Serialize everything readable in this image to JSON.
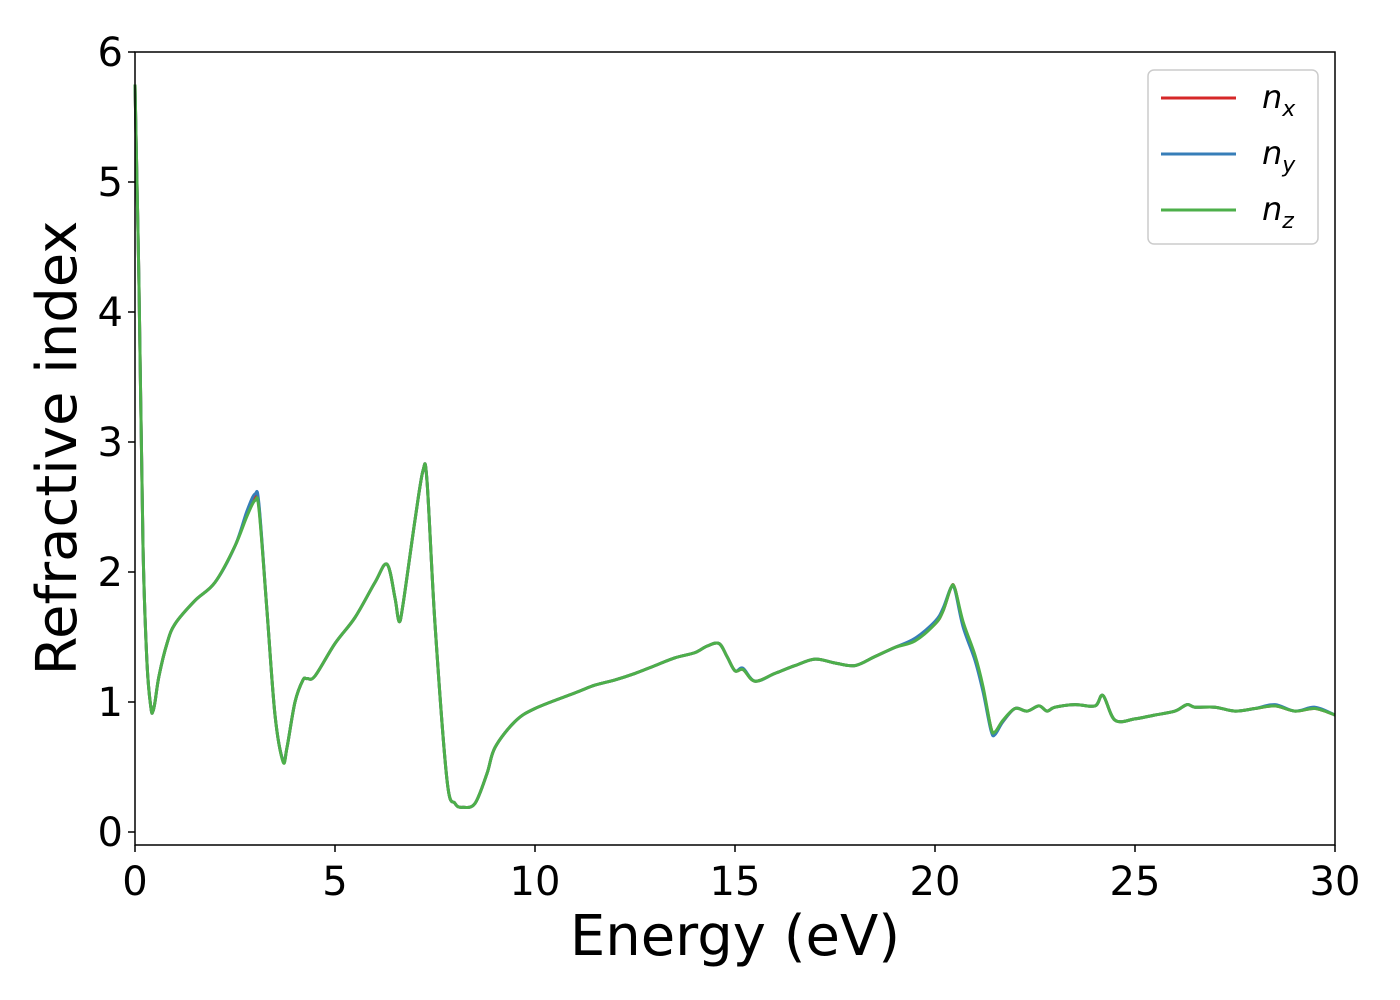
{
  "chart_data": {
    "type": "line",
    "xlabel": "Energy (eV)",
    "ylabel": "Refractive index",
    "xlim": [
      0,
      30
    ],
    "ylim": [
      -0.1,
      6
    ],
    "xticks": [
      0,
      5,
      10,
      15,
      20,
      25,
      30
    ],
    "yticks": [
      0,
      1,
      2,
      3,
      4,
      5,
      6
    ],
    "x_tick_labels": [
      "0",
      "5",
      "10",
      "15",
      "20",
      "25",
      "30"
    ],
    "y_tick_labels": [
      "0",
      "1",
      "2",
      "3",
      "4",
      "5",
      "6"
    ],
    "grid": false,
    "legend_position": "top-right",
    "series": [
      {
        "name": "n_x",
        "label_main": "n",
        "label_sub": "x",
        "color": "#d62728",
        "x": [
          0,
          0.1,
          0.2,
          0.3,
          0.4,
          0.45,
          0.5,
          0.6,
          0.8,
          1.0,
          1.5,
          2.0,
          2.5,
          2.8,
          3.0,
          3.1,
          3.3,
          3.5,
          3.7,
          3.8,
          4.0,
          4.2,
          4.3,
          4.5,
          5.0,
          5.5,
          6.0,
          6.3,
          6.5,
          6.6,
          6.7,
          7.0,
          7.2,
          7.3,
          7.5,
          7.8,
          8.0,
          8.2,
          8.5,
          8.8,
          9.0,
          9.5,
          10,
          11,
          11.5,
          12,
          12.5,
          13,
          13.5,
          14,
          14.3,
          14.6,
          14.8,
          15,
          15.2,
          15.5,
          16,
          16.5,
          17,
          17.5,
          18,
          18.5,
          19,
          19.5,
          20,
          20.2,
          20.4,
          20.5,
          20.7,
          21,
          21.2,
          21.4,
          21.5,
          21.7,
          22,
          22.3,
          22.6,
          22.8,
          23,
          23.5,
          24,
          24.2,
          24.5,
          25,
          25.5,
          26,
          26.3,
          26.5,
          27,
          27.5,
          28,
          28.5,
          29,
          29.5,
          30
        ],
        "values": [
          5.75,
          4.2,
          2.2,
          1.3,
          0.95,
          0.93,
          1.0,
          1.2,
          1.45,
          1.6,
          1.78,
          1.92,
          2.2,
          2.45,
          2.58,
          2.5,
          1.7,
          0.9,
          0.55,
          0.65,
          1.0,
          1.17,
          1.18,
          1.2,
          1.45,
          1.65,
          1.92,
          2.06,
          1.8,
          1.62,
          1.75,
          2.4,
          2.78,
          2.7,
          1.6,
          0.4,
          0.22,
          0.19,
          0.22,
          0.45,
          0.65,
          0.85,
          0.95,
          1.07,
          1.13,
          1.17,
          1.22,
          1.28,
          1.34,
          1.38,
          1.43,
          1.45,
          1.35,
          1.24,
          1.25,
          1.16,
          1.22,
          1.28,
          1.33,
          1.3,
          1.28,
          1.35,
          1.42,
          1.48,
          1.6,
          1.7,
          1.88,
          1.87,
          1.6,
          1.35,
          1.1,
          0.8,
          0.76,
          0.85,
          0.95,
          0.93,
          0.97,
          0.93,
          0.96,
          0.98,
          0.97,
          1.05,
          0.86,
          0.87,
          0.9,
          0.93,
          0.98,
          0.96,
          0.96,
          0.93,
          0.95,
          0.97,
          0.93,
          0.95,
          0.9
        ]
      },
      {
        "name": "n_y",
        "label_main": "n",
        "label_sub": "y",
        "color": "#377eb8",
        "x": [
          0,
          0.1,
          0.2,
          0.3,
          0.4,
          0.45,
          0.5,
          0.6,
          0.8,
          1.0,
          1.5,
          2.0,
          2.5,
          2.8,
          3.0,
          3.1,
          3.3,
          3.5,
          3.7,
          3.8,
          4.0,
          4.2,
          4.3,
          4.5,
          5.0,
          5.5,
          6.0,
          6.3,
          6.5,
          6.6,
          6.7,
          7.0,
          7.2,
          7.3,
          7.5,
          7.8,
          8.0,
          8.2,
          8.5,
          8.8,
          9.0,
          9.5,
          10,
          11,
          11.5,
          12,
          12.5,
          13,
          13.5,
          14,
          14.3,
          14.6,
          14.8,
          15,
          15.2,
          15.5,
          16,
          16.5,
          17,
          17.5,
          18,
          18.5,
          19,
          19.5,
          20,
          20.2,
          20.4,
          20.5,
          20.7,
          21,
          21.2,
          21.4,
          21.5,
          21.7,
          22,
          22.3,
          22.6,
          22.8,
          23,
          23.5,
          24,
          24.2,
          24.5,
          25,
          25.5,
          26,
          26.3,
          26.5,
          27,
          27.5,
          28,
          28.5,
          29,
          29.5,
          30
        ],
        "values": [
          5.75,
          4.2,
          2.2,
          1.3,
          0.95,
          0.93,
          1.0,
          1.2,
          1.45,
          1.6,
          1.78,
          1.92,
          2.2,
          2.47,
          2.6,
          2.52,
          1.7,
          0.9,
          0.55,
          0.65,
          1.0,
          1.17,
          1.18,
          1.2,
          1.45,
          1.65,
          1.92,
          2.06,
          1.8,
          1.62,
          1.75,
          2.4,
          2.78,
          2.7,
          1.6,
          0.4,
          0.22,
          0.19,
          0.22,
          0.45,
          0.65,
          0.85,
          0.95,
          1.07,
          1.13,
          1.17,
          1.22,
          1.28,
          1.34,
          1.38,
          1.43,
          1.45,
          1.35,
          1.24,
          1.26,
          1.16,
          1.22,
          1.28,
          1.33,
          1.3,
          1.28,
          1.35,
          1.42,
          1.49,
          1.62,
          1.72,
          1.88,
          1.86,
          1.58,
          1.32,
          1.08,
          0.78,
          0.75,
          0.85,
          0.95,
          0.93,
          0.97,
          0.93,
          0.96,
          0.98,
          0.97,
          1.05,
          0.86,
          0.87,
          0.9,
          0.93,
          0.98,
          0.96,
          0.96,
          0.93,
          0.95,
          0.98,
          0.93,
          0.96,
          0.9
        ]
      },
      {
        "name": "n_z",
        "label_main": "n",
        "label_sub": "z",
        "color": "#4daf4a",
        "x": [
          0,
          0.1,
          0.2,
          0.3,
          0.4,
          0.45,
          0.5,
          0.6,
          0.8,
          1.0,
          1.5,
          2.0,
          2.5,
          2.8,
          3.0,
          3.1,
          3.3,
          3.5,
          3.7,
          3.8,
          4.0,
          4.2,
          4.3,
          4.5,
          5.0,
          5.5,
          6.0,
          6.3,
          6.5,
          6.6,
          6.7,
          7.0,
          7.2,
          7.3,
          7.5,
          7.8,
          8.0,
          8.2,
          8.5,
          8.8,
          9.0,
          9.5,
          10,
          11,
          11.5,
          12,
          12.5,
          13,
          13.5,
          14,
          14.3,
          14.6,
          14.8,
          15,
          15.2,
          15.5,
          16,
          16.5,
          17,
          17.5,
          18,
          18.5,
          19,
          19.5,
          20,
          20.2,
          20.4,
          20.5,
          20.7,
          21,
          21.2,
          21.4,
          21.5,
          21.7,
          22,
          22.3,
          22.6,
          22.8,
          23,
          23.5,
          24,
          24.2,
          24.5,
          25,
          25.5,
          26,
          26.3,
          26.5,
          27,
          27.5,
          28,
          28.5,
          29,
          29.5,
          30
        ],
        "values": [
          5.75,
          4.2,
          2.2,
          1.3,
          0.95,
          0.93,
          1.0,
          1.2,
          1.45,
          1.6,
          1.78,
          1.92,
          2.2,
          2.43,
          2.55,
          2.48,
          1.7,
          0.9,
          0.54,
          0.65,
          1.0,
          1.17,
          1.18,
          1.2,
          1.45,
          1.65,
          1.92,
          2.06,
          1.8,
          1.62,
          1.75,
          2.4,
          2.78,
          2.7,
          1.6,
          0.4,
          0.22,
          0.19,
          0.22,
          0.45,
          0.65,
          0.85,
          0.95,
          1.07,
          1.13,
          1.17,
          1.22,
          1.28,
          1.34,
          1.38,
          1.43,
          1.45,
          1.35,
          1.24,
          1.25,
          1.16,
          1.22,
          1.28,
          1.33,
          1.3,
          1.28,
          1.35,
          1.42,
          1.47,
          1.6,
          1.7,
          1.88,
          1.87,
          1.62,
          1.36,
          1.12,
          0.8,
          0.77,
          0.86,
          0.95,
          0.93,
          0.97,
          0.93,
          0.96,
          0.98,
          0.97,
          1.05,
          0.86,
          0.87,
          0.9,
          0.93,
          0.98,
          0.96,
          0.96,
          0.93,
          0.95,
          0.97,
          0.93,
          0.95,
          0.9
        ]
      }
    ]
  }
}
